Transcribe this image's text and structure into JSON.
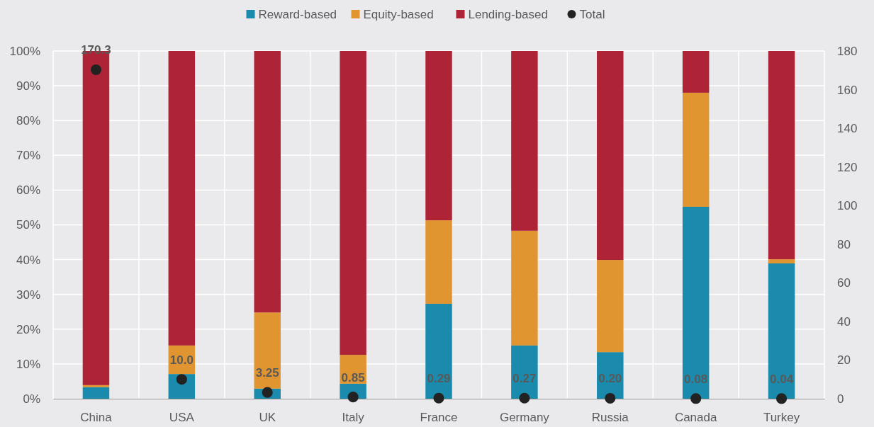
{
  "chart_data": {
    "type": "bar",
    "stacked": true,
    "categories": [
      "China",
      "USA",
      "UK",
      "Italy",
      "France",
      "Germany",
      "Russia",
      "Canada",
      "Turkey"
    ],
    "series": [
      {
        "name": "Reward-based",
        "color": "#1a8aad",
        "values": [
          3.3,
          7.1,
          2.9,
          4.3,
          27.3,
          15.3,
          13.4,
          55.2,
          38.9
        ]
      },
      {
        "name": "Equity-based",
        "color": "#e09530",
        "values": [
          0.6,
          8.2,
          21.9,
          8.3,
          24.0,
          33.0,
          26.5,
          32.8,
          1.2
        ]
      },
      {
        "name": "Lending-based",
        "color": "#ae2335",
        "values": [
          96.1,
          84.7,
          75.2,
          87.4,
          48.7,
          51.7,
          60.1,
          12.0,
          59.9
        ]
      },
      {
        "name": "Total",
        "type": "scatter",
        "axis": "y2",
        "color": "#222222",
        "marker": "circle",
        "values": [
          170.3,
          10.0,
          3.25,
          0.85,
          0.29,
          0.27,
          0.2,
          0.08,
          0.04
        ],
        "value_labels": [
          "170.3",
          "10.0",
          "3.25",
          "0.85",
          "0.29",
          "0.27",
          "0.20",
          "0.08",
          "0.04"
        ]
      }
    ],
    "ylim": [
      0,
      100
    ],
    "yticks": [
      {
        "value": 0,
        "label": "0%"
      },
      {
        "value": 10,
        "label": "10%"
      },
      {
        "value": 20,
        "label": "20%"
      },
      {
        "value": 30,
        "label": "30%"
      },
      {
        "value": 40,
        "label": "40%"
      },
      {
        "value": 50,
        "label": "50%"
      },
      {
        "value": 60,
        "label": "60%"
      },
      {
        "value": 70,
        "label": "70%"
      },
      {
        "value": 80,
        "label": "80%"
      },
      {
        "value": 90,
        "label": "90%"
      },
      {
        "value": 100,
        "label": "100%"
      }
    ],
    "y2lim": [
      0,
      180
    ],
    "y2ticks": [
      0,
      20,
      40,
      60,
      80,
      100,
      120,
      140,
      160,
      180
    ],
    "grid": true,
    "legend": "top"
  }
}
